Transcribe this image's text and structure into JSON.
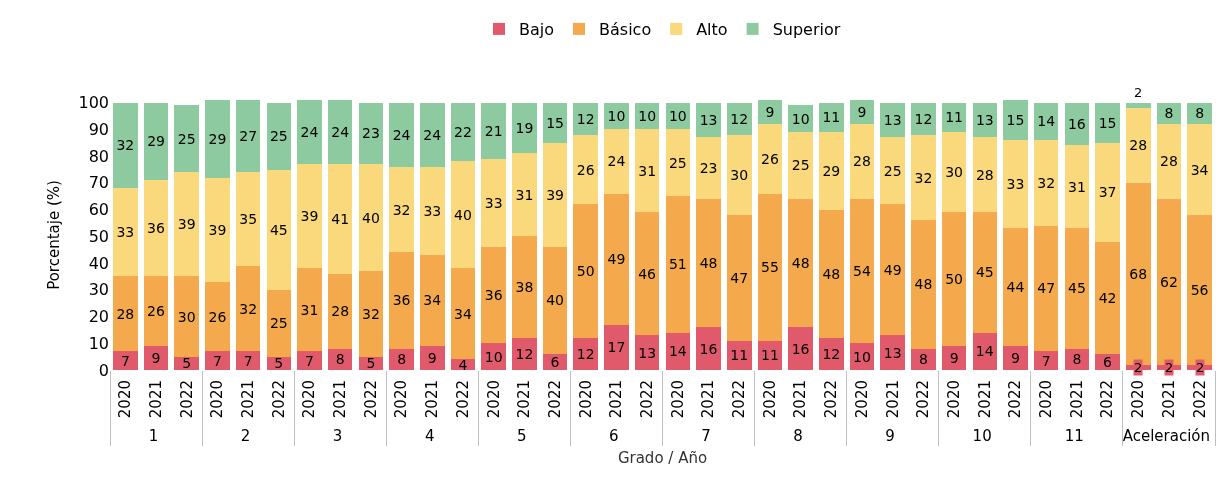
{
  "chart_data": {
    "type": "bar",
    "stacked": true,
    "xlabel": "Grado / Año",
    "ylabel": "Porcentaje (%)",
    "categories": [
      "2020",
      "2021",
      "2022",
      "2020",
      "2021",
      "2022",
      "2020",
      "2021",
      "2022",
      "2020",
      "2021",
      "2022",
      "2020",
      "2021",
      "2022",
      "2020",
      "2021",
      "2022",
      "2020",
      "2021",
      "2022",
      "2020",
      "2021",
      "2022",
      "2020",
      "2021",
      "2022",
      "2020",
      "2021",
      "2022",
      "2020",
      "2021",
      "2022",
      "2020",
      "2021",
      "2022"
    ],
    "annotations": [
      "1",
      "2",
      "3",
      "4",
      "5",
      "6",
      "7",
      "8",
      "9",
      "10",
      "11",
      "Aceleración"
    ],
    "series": [
      {
        "name": "Bajo",
        "color": "#e05a6b",
        "values": [
          7,
          9,
          5,
          7,
          7,
          5,
          7,
          8,
          5,
          8,
          9,
          4,
          10,
          12,
          6,
          12,
          17,
          13,
          14,
          16,
          11,
          11,
          16,
          12,
          10,
          13,
          8,
          9,
          14,
          9,
          7,
          8,
          6,
          2,
          2,
          2
        ]
      },
      {
        "name": "Básico",
        "color": "#f4aa4c",
        "values": [
          28,
          26,
          30,
          26,
          32,
          25,
          31,
          28,
          32,
          36,
          34,
          34,
          36,
          38,
          40,
          50,
          49,
          46,
          51,
          48,
          47,
          55,
          48,
          48,
          54,
          49,
          48,
          50,
          45,
          44,
          47,
          45,
          42,
          68,
          62,
          56
        ]
      },
      {
        "name": "Alto",
        "color": "#fad87c",
        "values": [
          33,
          36,
          39,
          39,
          35,
          45,
          39,
          41,
          40,
          32,
          33,
          40,
          33,
          31,
          39,
          26,
          24,
          31,
          25,
          23,
          30,
          26,
          25,
          29,
          28,
          25,
          32,
          30,
          28,
          33,
          32,
          31,
          37,
          28,
          28,
          34
        ]
      },
      {
        "name": "Superior",
        "color": "#8dcaa0",
        "values": [
          32,
          29,
          25,
          29,
          27,
          25,
          24,
          24,
          23,
          24,
          24,
          22,
          21,
          19,
          15,
          12,
          10,
          10,
          10,
          13,
          12,
          9,
          10,
          11,
          9,
          13,
          12,
          11,
          13,
          15,
          14,
          16,
          15,
          2,
          8,
          8
        ]
      }
    ],
    "ylim": [
      0,
      101
    ],
    "yticks": [
      0,
      10,
      20,
      30,
      40,
      50,
      60,
      70,
      80,
      90,
      100
    ],
    "data_labels": true,
    "legend": "top",
    "grid": false
  }
}
